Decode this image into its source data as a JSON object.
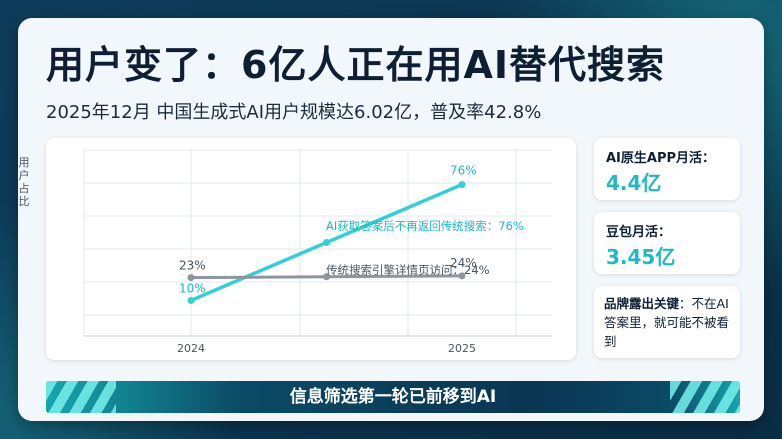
{
  "title": "用户变了：6亿人正在用AI替代搜索",
  "subtitle": "2025年12月 中国生成式AI用户规模达6.02亿，普及率42.8%",
  "chart_data": {
    "type": "line",
    "ylabel": "用户占比",
    "categories": [
      "2024",
      "2025"
    ],
    "series": [
      {
        "name": "",
        "color": "#2fd0d6",
        "points": [
          {
            "x": 2024,
            "y": 10
          },
          {
            "x": 2025,
            "y": 76
          }
        ],
        "start_label": "10%",
        "end_label": "76%",
        "annotation": "AI获取答案后不再返回传统搜索：76%"
      },
      {
        "name": "",
        "color": "#8d95a0",
        "points": [
          {
            "x": 2024,
            "y": 23
          },
          {
            "x": 2025,
            "y": 24
          }
        ],
        "start_label": "23%",
        "end_label": "24%",
        "annotation": "传统搜索引擎详情页访问：24%"
      }
    ],
    "grid": true
  },
  "side": {
    "card1": {
      "label": "AI原生APP月活：",
      "value": "4.4亿"
    },
    "card2": {
      "label": "豆包月活：",
      "value": "3.45亿"
    },
    "card3": {
      "label_bold": "品牌露出关键",
      "text": "：不在AI答案里，就可能不被看到"
    }
  },
  "banner": "信息筛选第一轮已前移到AI",
  "colors": {
    "accent": "#1fb8c5",
    "title": "#0f1f33",
    "background": "#0b3550"
  }
}
